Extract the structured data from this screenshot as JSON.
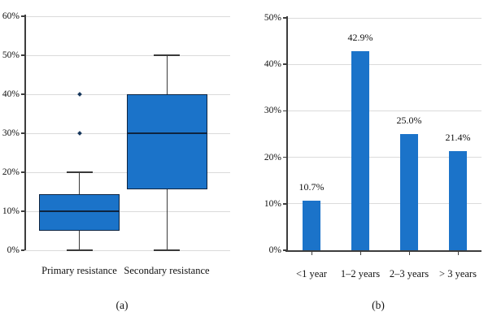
{
  "figure": {
    "accent_color": "#1b73c9",
    "box_border_color": "#0e2440",
    "grid_color": "#dbdbdb",
    "axis_color": "#3d3d3d",
    "background_color": "#ffffff"
  },
  "chart_data": [
    {
      "type": "boxplot",
      "caption": "(a)",
      "categories": [
        "Primary resistance",
        "Secondary resistance"
      ],
      "ylim": [
        0,
        60
      ],
      "ytick_step": 10,
      "yticks": [
        "0%",
        "10%",
        "20%",
        "30%",
        "40%",
        "50%",
        "60%"
      ],
      "grid": true,
      "series": [
        {
          "name": "Primary resistance",
          "whisker_low": 0,
          "q1": 5,
          "median": 10,
          "q3": 14.3,
          "whisker_high": 20,
          "outliers": [
            30,
            40
          ]
        },
        {
          "name": "Secondary resistance",
          "whisker_low": 0,
          "q1": 15.6,
          "median": 30,
          "q3": 40,
          "whisker_high": 50,
          "outliers": []
        }
      ]
    },
    {
      "type": "bar",
      "caption": "(b)",
      "categories": [
        "<1 year",
        "1–2 years",
        "2–3 years",
        "> 3 years"
      ],
      "values": [
        10.7,
        42.9,
        25.0,
        21.4
      ],
      "value_labels": [
        "10.7%",
        "42.9%",
        "25.0%",
        "21.4%"
      ],
      "ylim": [
        0,
        50
      ],
      "ytick_step": 10,
      "yticks": [
        "0%",
        "10%",
        "20%",
        "30%",
        "40%",
        "50%"
      ],
      "grid": true
    }
  ]
}
